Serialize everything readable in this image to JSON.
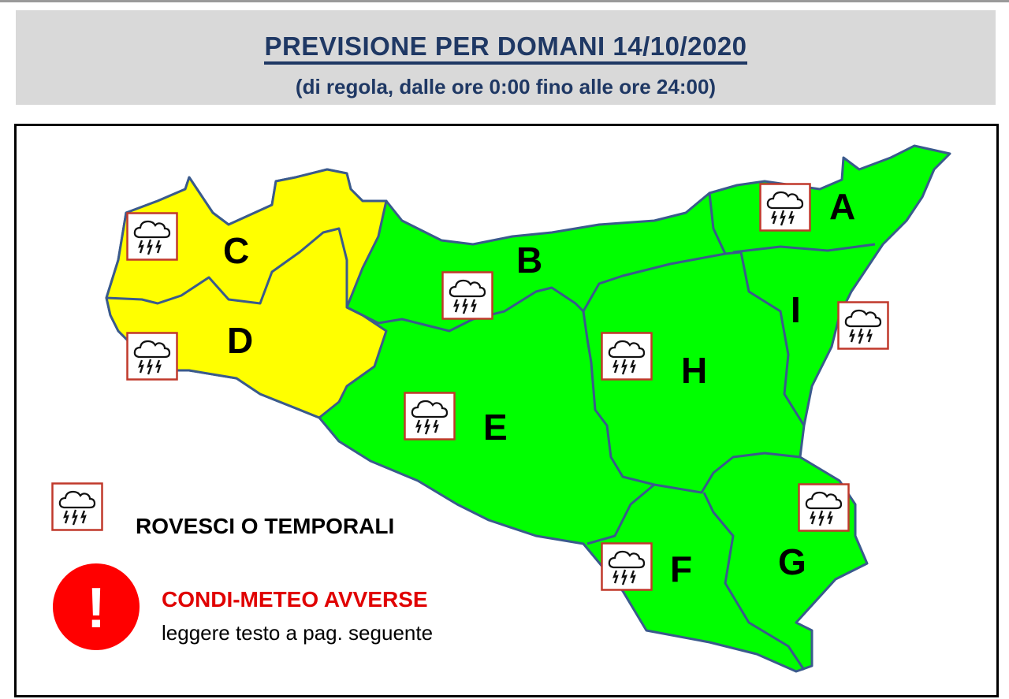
{
  "header": {
    "title": "PREVISIONE PER DOMANI 14/10/2020",
    "subtitle": "(di regola, dalle ore 0:00 fino alle ore 24:00)"
  },
  "map": {
    "regions": [
      {
        "label": "A",
        "color": "#00ff00",
        "icon": "thunderstorm-icon"
      },
      {
        "label": "B",
        "color": "#00ff00",
        "icon": "thunderstorm-icon"
      },
      {
        "label": "C",
        "color": "#ffff00",
        "icon": "thunderstorm-icon"
      },
      {
        "label": "D",
        "color": "#ffff00",
        "icon": "thunderstorm-icon"
      },
      {
        "label": "E",
        "color": "#00ff00",
        "icon": "thunderstorm-icon"
      },
      {
        "label": "F",
        "color": "#00ff00",
        "icon": "thunderstorm-icon"
      },
      {
        "label": "G",
        "color": "#00ff00",
        "icon": "thunderstorm-icon"
      },
      {
        "label": "H",
        "color": "#00ff00",
        "icon": "thunderstorm-icon"
      },
      {
        "label": "I",
        "color": "#00ff00",
        "icon": "thunderstorm-icon"
      }
    ],
    "border_color": "#3a5a8c"
  },
  "legend": {
    "storm_label": "ROVESCI O TEMPORALI",
    "storm_icon": "thunderstorm-icon",
    "warning_icon": "exclamation-icon",
    "warning_symbol": "!",
    "warning_title": "CONDI-METEO AVVERSE",
    "warning_text": "leggere testo a pag. seguente",
    "warning_color": "#ff0000"
  }
}
